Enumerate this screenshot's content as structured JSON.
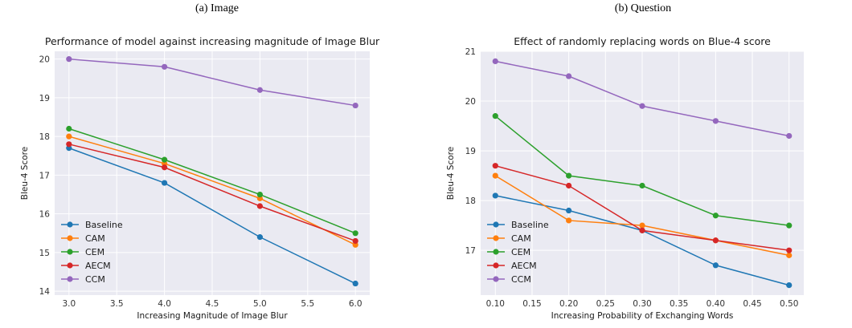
{
  "captions": [
    "(a) Image",
    "(b) Question"
  ],
  "chart_data": [
    {
      "type": "line",
      "title": "Performance of model against increasing magnitude of Image Blur",
      "xlabel": "Increasing Magnitude of Image Blur",
      "ylabel": "Bleu-4 Score",
      "x": [
        3.0,
        4.0,
        5.0,
        6.0
      ],
      "xlim": [
        2.85,
        6.15
      ],
      "ylim": [
        13.9,
        20.2
      ],
      "xticks": [
        3.0,
        3.5,
        4.0,
        4.5,
        5.0,
        5.5,
        6.0
      ],
      "xtick_labels": [
        "3.0",
        "3.5",
        "4.0",
        "4.5",
        "5.0",
        "5.5",
        "6.0"
      ],
      "yticks": [
        14,
        15,
        16,
        17,
        18,
        19,
        20
      ],
      "ytick_labels": [
        "14",
        "15",
        "16",
        "17",
        "18",
        "19",
        "20"
      ],
      "grid": true,
      "legend_position": "lower-left",
      "series": [
        {
          "name": "Baseline",
          "color": "#1f77b4",
          "values": [
            17.7,
            16.8,
            15.4,
            14.2
          ]
        },
        {
          "name": "CAM",
          "color": "#ff7f0e",
          "values": [
            18.0,
            17.3,
            16.4,
            15.2
          ]
        },
        {
          "name": "CEM",
          "color": "#2ca02c",
          "values": [
            18.2,
            17.4,
            16.5,
            15.5
          ]
        },
        {
          "name": "AECM",
          "color": "#d62728",
          "values": [
            17.8,
            17.2,
            16.2,
            15.3
          ]
        },
        {
          "name": "CCM",
          "color": "#9467bd",
          "values": [
            20.0,
            19.8,
            19.2,
            18.8
          ]
        }
      ]
    },
    {
      "type": "line",
      "title": "Effect of randomly replacing words on Blue-4 score",
      "xlabel": "Increasing Probability of Exchanging Words",
      "ylabel": "Bleu-4 Score",
      "x": [
        0.1,
        0.2,
        0.3,
        0.4,
        0.5
      ],
      "xlim": [
        0.08,
        0.52
      ],
      "ylim": [
        16.1,
        21.0
      ],
      "xticks": [
        0.1,
        0.15,
        0.2,
        0.25,
        0.3,
        0.35,
        0.4,
        0.45,
        0.5
      ],
      "xtick_labels": [
        "0.10",
        "0.15",
        "0.20",
        "0.25",
        "0.30",
        "0.35",
        "0.40",
        "0.45",
        "0.50"
      ],
      "yticks": [
        17,
        18,
        19,
        20,
        21
      ],
      "ytick_labels": [
        "17",
        "18",
        "19",
        "20",
        "21"
      ],
      "grid": true,
      "legend_position": "lower-left",
      "series": [
        {
          "name": "Baseline",
          "color": "#1f77b4",
          "values": [
            18.1,
            17.8,
            17.4,
            16.7,
            16.3
          ]
        },
        {
          "name": "CAM",
          "color": "#ff7f0e",
          "values": [
            18.5,
            17.6,
            17.5,
            17.2,
            16.9
          ]
        },
        {
          "name": "CEM",
          "color": "#2ca02c",
          "values": [
            19.7,
            18.5,
            18.3,
            17.7,
            17.5
          ]
        },
        {
          "name": "AECM",
          "color": "#d62728",
          "values": [
            18.7,
            18.3,
            17.4,
            17.2,
            17.0
          ]
        },
        {
          "name": "CCM",
          "color": "#9467bd",
          "values": [
            20.8,
            20.5,
            19.9,
            19.6,
            19.3
          ]
        }
      ]
    }
  ]
}
